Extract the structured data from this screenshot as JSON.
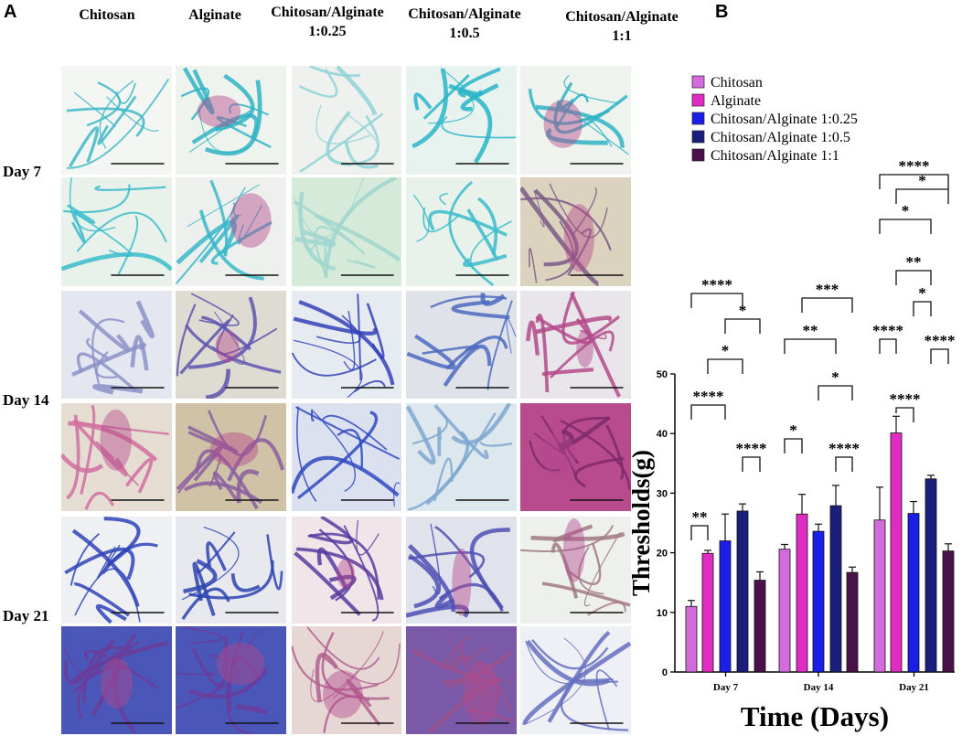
{
  "panel_labels": {
    "a": "A",
    "b": "B"
  },
  "micrograph_panel": {
    "columns": [
      "Chitosan",
      "Alginate",
      "Chitosan/Alginate 1:0.25",
      "Chitosan/Alginate 1:0.5",
      "Chitosan/Alginate 1:1"
    ],
    "column_lines": [
      [
        "Chitosan"
      ],
      [
        "Alginate"
      ],
      [
        "Chitosan/Alginate",
        "1:0.25"
      ],
      [
        "Chitosan/Alginate",
        "1:0.5"
      ],
      [
        "Chitosan/Alginate",
        "1:1"
      ]
    ],
    "rows": [
      "Day 7",
      "Day 14",
      "Day 21"
    ],
    "tile_styles": [
      [
        "thin-cyan-network",
        "cyan-network-pink",
        "faint-cyan-network",
        "cyan-network-dense",
        "cyan-network-pink"
      ],
      [
        "cyan-closeup",
        "cyan-pink-closeup",
        "pale-green-closeup",
        "cyan-closeup",
        "purple-fiber-closeup"
      ],
      [
        "lavender-network",
        "purple-fibers",
        "blue-fibers",
        "blue-blob",
        "pink-fiber"
      ],
      [
        "pink-closeup",
        "purple-stain-closeup",
        "blue-fiber-closeup",
        "cyan-faint-closeup",
        "magenta-closeup"
      ],
      [
        "blue-mass",
        "blue-mass-heavy",
        "purple-network",
        "blue-fiber-mass",
        "brown-network-lowmag"
      ],
      [
        "blue-purple-closeup",
        "blue-purple-closeup",
        "pink-closeup-dark",
        "purple-closeup",
        "lavender-lowmag"
      ]
    ]
  },
  "colors": {
    "chitosan": "#d46bdc",
    "alginate": "#e02cc2",
    "ca_025": "#1a1ee6",
    "ca_05": "#1a1f7c",
    "ca_1": "#4a1248"
  },
  "chart_data": {
    "type": "bar",
    "xlabel": "Time (Days)",
    "ylabel": "Thresholds(g)",
    "ylim": [
      0,
      50
    ],
    "yticks": [
      0,
      10,
      20,
      30,
      40,
      50
    ],
    "categories": [
      "Day 7",
      "Day 14",
      "Day 21"
    ],
    "legend_position": "top-right",
    "series": [
      {
        "name": "Chitosan",
        "color": "#d46bdc",
        "values": [
          11,
          20.6,
          25.5
        ],
        "errors": [
          1,
          0.8,
          5.5
        ]
      },
      {
        "name": "Alginate",
        "color": "#e02cc2",
        "values": [
          19.9,
          26.5,
          40.1
        ],
        "errors": [
          0.5,
          3.3,
          2.8
        ]
      },
      {
        "name": "Chitosan/Alginate 1:0.25",
        "color": "#1a1ee6",
        "values": [
          22,
          23.6,
          26.6
        ],
        "errors": [
          4.5,
          1.2,
          2
        ]
      },
      {
        "name": "Chitosan/Alginate 1:0.5",
        "color": "#1a1f7c",
        "values": [
          27,
          27.9,
          32.4
        ],
        "errors": [
          1.2,
          3.4,
          0.6
        ]
      },
      {
        "name": "Chitosan/Alginate 1:1",
        "color": "#4a1248",
        "values": [
          15.4,
          16.7,
          20.3
        ],
        "errors": [
          1.4,
          0.9,
          1.2
        ]
      }
    ],
    "significance": [
      {
        "group": 0,
        "from": 0,
        "to": 1,
        "label": "**"
      },
      {
        "group": 0,
        "from": 3,
        "to": 4,
        "label": "****"
      },
      {
        "group": 0,
        "from": 0,
        "to": 2,
        "label": "****"
      },
      {
        "group": 0,
        "from": 1,
        "to": 3,
        "label": "*"
      },
      {
        "group": 0,
        "from": 2,
        "to": 4,
        "label": "*"
      },
      {
        "group": 0,
        "from": 0,
        "to": 3,
        "label": "****"
      },
      {
        "group": 1,
        "from": 0,
        "to": 1,
        "label": "*"
      },
      {
        "group": 1,
        "from": 3,
        "to": 4,
        "label": "****"
      },
      {
        "group": 1,
        "from": 2,
        "to": 4,
        "label": "*"
      },
      {
        "group": 1,
        "from": 0,
        "to": 3,
        "label": "**"
      },
      {
        "group": 1,
        "from": 1,
        "to": 4,
        "label": "***"
      },
      {
        "group": 2,
        "from": 1,
        "to": 2,
        "label": "****"
      },
      {
        "group": 2,
        "from": 0,
        "to": 1,
        "label": "****"
      },
      {
        "group": 2,
        "from": 3,
        "to": 4,
        "label": "****"
      },
      {
        "group": 2,
        "from": 2,
        "to": 3,
        "label": "*"
      },
      {
        "group": 2,
        "from": 1,
        "to": 3,
        "label": "**"
      },
      {
        "group": 2,
        "from": 0,
        "to": 3,
        "label": "*"
      },
      {
        "group": 2,
        "from": 1,
        "to": 4,
        "label": "*"
      },
      {
        "group": 2,
        "from": 0,
        "to": 4,
        "label": "****"
      }
    ]
  }
}
